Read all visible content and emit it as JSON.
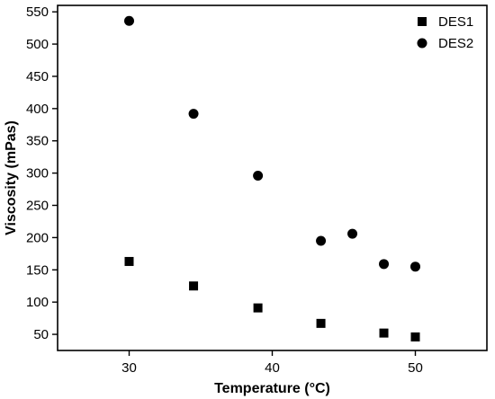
{
  "chart_data": {
    "type": "scatter",
    "xlabel": "Temperature (°C)",
    "ylabel": "Viscosity (mPas)",
    "xlim": [
      25,
      55
    ],
    "ylim": [
      25,
      560
    ],
    "x_ticks": [
      30,
      40,
      50
    ],
    "y_ticks": [
      50,
      100,
      150,
      200,
      250,
      300,
      350,
      400,
      450,
      500,
      550
    ],
    "grid": false,
    "legend_position": "top-right",
    "series": [
      {
        "name": "DES1",
        "marker": "square",
        "color": "#000000",
        "points": [
          {
            "x": 30,
            "y": 163
          },
          {
            "x": 34.5,
            "y": 125
          },
          {
            "x": 39,
            "y": 91
          },
          {
            "x": 43.4,
            "y": 67
          },
          {
            "x": 47.8,
            "y": 52
          },
          {
            "x": 50,
            "y": 46
          }
        ]
      },
      {
        "name": "DES2",
        "marker": "circle",
        "color": "#000000",
        "points": [
          {
            "x": 30,
            "y": 536
          },
          {
            "x": 34.5,
            "y": 392
          },
          {
            "x": 39,
            "y": 296
          },
          {
            "x": 43.4,
            "y": 195
          },
          {
            "x": 45.6,
            "y": 206
          },
          {
            "x": 47.8,
            "y": 159
          },
          {
            "x": 50,
            "y": 155
          }
        ]
      }
    ]
  }
}
